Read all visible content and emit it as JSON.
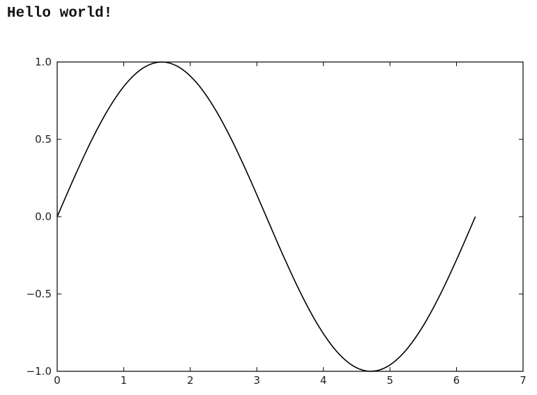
{
  "output": {
    "text": "Hello world!"
  },
  "chart_data": {
    "type": "line",
    "title": "",
    "xlabel": "",
    "ylabel": "",
    "xlim": [
      0,
      7
    ],
    "ylim": [
      -1.0,
      1.0
    ],
    "xticks": [
      "0",
      "1",
      "2",
      "3",
      "4",
      "5",
      "6",
      "7"
    ],
    "yticks": [
      "1.0",
      "0.5",
      "0.0",
      "−0.5",
      "−1.0"
    ],
    "grid": false,
    "legend": "none",
    "series": [
      {
        "color": "#000000",
        "x": [
          0.0,
          0.2618,
          0.5236,
          0.7854,
          1.0472,
          1.309,
          1.5708,
          1.8326,
          2.0944,
          2.3562,
          2.618,
          2.8798,
          3.1416,
          3.4034,
          3.6652,
          3.927,
          4.1888,
          4.4506,
          4.7124,
          4.9742,
          5.236,
          5.4978,
          5.7596,
          6.0214,
          6.2832
        ],
        "y": [
          0.0,
          0.2588,
          0.5,
          0.7071,
          0.866,
          0.9659,
          1.0,
          0.9659,
          0.866,
          0.7071,
          0.5,
          0.2588,
          0.0,
          -0.2588,
          -0.5,
          -0.7071,
          -0.866,
          -0.9659,
          -1.0,
          -0.9659,
          -0.866,
          -0.7071,
          -0.5,
          -0.2588,
          0.0
        ]
      }
    ]
  }
}
